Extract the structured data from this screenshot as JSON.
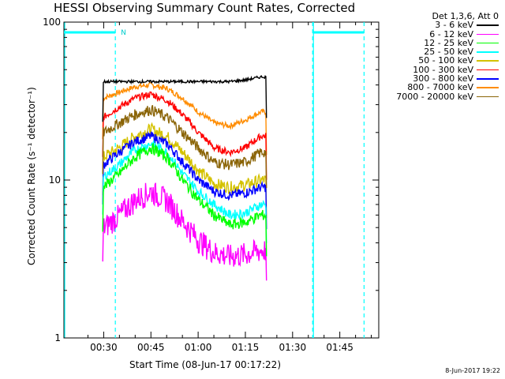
{
  "chart_data": {
    "type": "line",
    "title": "HESSI Observing Summary Count Rates, Corrected",
    "xlabel": "Start Time (08-Jun-17 00:17:22)",
    "ylabel": "Corrected Count Rate (s⁻¹ detector⁻¹)",
    "y_scale": "log",
    "ylim": [
      1,
      100
    ],
    "xlim": [
      "00:17:22",
      "01:57:22"
    ],
    "x_ticks": [
      "00:30",
      "00:45",
      "01:00",
      "01:15",
      "01:30",
      "01:45"
    ],
    "y_ticks": [
      "1",
      "10",
      "100"
    ],
    "grid": false,
    "legend_title": "Det 1,3,6, Att 0",
    "legend_position": "right-outside",
    "data_interval": [
      "00:29:42",
      "01:21:42"
    ],
    "sun_visible_intervals": [
      [
        "00:17:22",
        "00:33:42"
      ],
      [
        "01:36:22",
        "01:52:42"
      ]
    ],
    "sun_markers": [
      "00:33:42",
      "01:36:22",
      "01:52:42"
    ],
    "sun_marker_label": "N",
    "series": [
      {
        "name": "3 - 6 keV",
        "color": "#000000",
        "x": [
          "00:30",
          "00:35",
          "00:40",
          "00:45",
          "00:50",
          "00:55",
          "01:00",
          "01:05",
          "01:10",
          "01:15",
          "01:20"
        ],
        "values": [
          42,
          42,
          42,
          42,
          42,
          42,
          42,
          42,
          42,
          43,
          45
        ]
      },
      {
        "name": "6 - 12 keV",
        "color": "#ff00ff",
        "x": [
          "00:30",
          "00:35",
          "00:40",
          "00:45",
          "00:50",
          "00:55",
          "01:00",
          "01:05",
          "01:10",
          "01:15",
          "01:20"
        ],
        "values": [
          5,
          6,
          7.5,
          8.5,
          7.5,
          5.5,
          4.2,
          3.5,
          3.3,
          3.4,
          3.6
        ]
      },
      {
        "name": "12 - 25 keV",
        "color": "#00ff00",
        "x": [
          "00:30",
          "00:35",
          "00:40",
          "00:45",
          "00:50",
          "00:55",
          "01:00",
          "01:05",
          "01:10",
          "01:15",
          "01:20"
        ],
        "values": [
          9,
          11,
          14,
          16,
          14,
          10,
          7.5,
          6,
          5.2,
          5.4,
          6
        ]
      },
      {
        "name": "25 - 50 keV",
        "color": "#00ffff",
        "x": [
          "00:30",
          "00:35",
          "00:40",
          "00:45",
          "00:50",
          "00:55",
          "01:00",
          "01:05",
          "01:10",
          "01:15",
          "01:20"
        ],
        "values": [
          10.5,
          12.5,
          15.5,
          17,
          15,
          11,
          8.5,
          7,
          6,
          6.2,
          7
        ]
      },
      {
        "name": "50 - 100 keV",
        "color": "#d4c200",
        "x": [
          "00:30",
          "00:35",
          "00:40",
          "00:45",
          "00:50",
          "00:55",
          "01:00",
          "01:05",
          "01:10",
          "01:15",
          "01:20"
        ],
        "values": [
          14,
          16,
          19,
          21,
          19,
          15,
          11.5,
          9.5,
          9,
          9.3,
          10
        ]
      },
      {
        "name": "100 - 300 keV",
        "color": "#ff0000",
        "x": [
          "00:30",
          "00:35",
          "00:40",
          "00:45",
          "00:50",
          "00:55",
          "01:00",
          "01:05",
          "01:10",
          "01:15",
          "01:20"
        ],
        "values": [
          25,
          29,
          33,
          35,
          32,
          26,
          20,
          16,
          15,
          16,
          19
        ]
      },
      {
        "name": "300 - 800 keV",
        "color": "#0000ff",
        "x": [
          "00:30",
          "00:35",
          "00:40",
          "00:45",
          "00:50",
          "00:55",
          "01:00",
          "01:05",
          "01:10",
          "01:15",
          "01:20"
        ],
        "values": [
          12.5,
          15,
          17.5,
          19,
          17,
          13,
          10,
          8.5,
          8,
          8.3,
          9
        ]
      },
      {
        "name": "800 - 7000 keV",
        "color": "#ff8c00",
        "x": [
          "00:30",
          "00:35",
          "00:40",
          "00:45",
          "00:50",
          "00:55",
          "01:00",
          "01:05",
          "01:10",
          "01:15",
          "01:20"
        ],
        "values": [
          33,
          36,
          39,
          40,
          38,
          33,
          27,
          23,
          22,
          24,
          27
        ]
      },
      {
        "name": "7000 - 20000 keV",
        "color": "#8b6508",
        "x": [
          "00:30",
          "00:35",
          "00:40",
          "00:45",
          "00:50",
          "00:55",
          "01:00",
          "01:05",
          "01:10",
          "01:15",
          "01:20"
        ],
        "values": [
          20,
          23,
          26,
          28,
          25,
          20,
          16,
          13,
          12.5,
          13,
          15
        ]
      }
    ]
  },
  "date_stamp": "8-Jun-2017 19:22"
}
